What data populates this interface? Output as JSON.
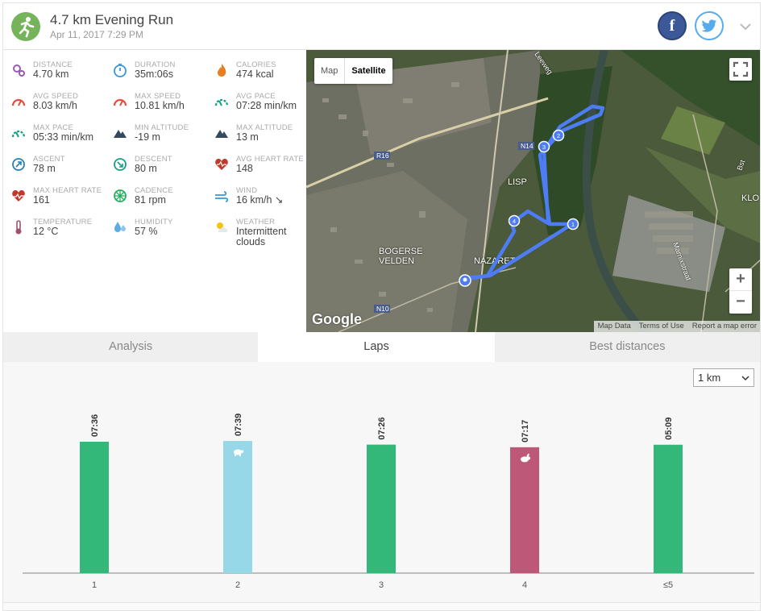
{
  "header": {
    "title": "4.7 km Evening Run",
    "date": "Apr 11, 2017 7:29 PM",
    "facebook_label": "f"
  },
  "stats": [
    {
      "label": "DISTANCE",
      "value": "4.70 km",
      "icon": "route-pin-icon",
      "color": "#9b59b6"
    },
    {
      "label": "DURATION",
      "value": "35m:06s",
      "icon": "stopwatch-icon",
      "color": "#3498db"
    },
    {
      "label": "CALORIES",
      "value": "474 kcal",
      "icon": "flame-icon",
      "color": "#e67e22"
    },
    {
      "label": "AVG SPEED",
      "value": "8.03 km/h",
      "icon": "speedometer-icon",
      "color": "#e74c3c"
    },
    {
      "label": "MAX SPEED",
      "value": "10.81 km/h",
      "icon": "speedometer-icon",
      "color": "#e74c3c"
    },
    {
      "label": "AVG PACE",
      "value": "07:28 min/km",
      "icon": "pace-gauge-icon",
      "color": "#16a085"
    },
    {
      "label": "MAX PACE",
      "value": "05:33 min/km",
      "icon": "pace-gauge-icon",
      "color": "#16a085"
    },
    {
      "label": "MIN ALTITUDE",
      "value": "-19 m",
      "icon": "mountain-icon",
      "color": "#34495e"
    },
    {
      "label": "MAX ALTITUDE",
      "value": "13 m",
      "icon": "mountain-icon",
      "color": "#34495e"
    },
    {
      "label": "ASCENT",
      "value": "78 m",
      "icon": "compass-up-icon",
      "color": "#2980b9"
    },
    {
      "label": "DESCENT",
      "value": "80 m",
      "icon": "compass-down-icon",
      "color": "#16a085"
    },
    {
      "label": "AVG HEART RATE",
      "value": "148",
      "icon": "heart-icon",
      "color": "#c0392b"
    },
    {
      "label": "MAX HEART RATE",
      "value": "161",
      "icon": "heartbeat-icon",
      "color": "#c0392b"
    },
    {
      "label": "CADENCE",
      "value": "81 rpm",
      "icon": "wheel-icon",
      "color": "#27ae60"
    },
    {
      "label": "WIND",
      "value": "16 km/h ↘",
      "icon": "wind-icon",
      "color": "#3498db"
    },
    {
      "label": "TEMPERATURE",
      "value": "12 °C",
      "icon": "thermometer-icon",
      "color": "#a0526b"
    },
    {
      "label": "HUMIDITY",
      "value": "57 %",
      "icon": "droplets-icon",
      "color": "#5dade2"
    },
    {
      "label": "WEATHER",
      "value": "Intermittent\nclouds",
      "icon": "cloud-sun-icon",
      "color": "#f1c40f"
    }
  ],
  "map": {
    "toggle_map": "Map",
    "toggle_satellite": "Satellite",
    "zoom_in": "+",
    "zoom_out": "−",
    "logo": "Google",
    "footer": [
      "Map Data",
      "Terms of Use",
      "Report a map error"
    ],
    "place_labels": [
      "LISP",
      "BOGERSE",
      "VELDEN",
      "NAZARET",
      "KLO",
      "Bst",
      "Marnixstraat",
      "Leeweg"
    ],
    "road_labels": [
      "R16",
      "N14",
      "N10"
    ],
    "lap_markers": [
      "1",
      "2",
      "3",
      "4"
    ],
    "route_color": "#4d7cf5"
  },
  "tabs": [
    {
      "label": "Analysis",
      "active": false
    },
    {
      "label": "Laps",
      "active": true
    },
    {
      "label": "Best distances",
      "active": false
    }
  ],
  "split_select": {
    "value": "1 km"
  },
  "chart_data": {
    "type": "bar",
    "categories": [
      "1",
      "2",
      "3",
      "4",
      "≤5"
    ],
    "values_label": [
      "07:36",
      "07:39",
      "07:26",
      "07:17",
      "05:09"
    ],
    "values_seconds": [
      456,
      459,
      446,
      437,
      309
    ],
    "bar_heights_relative": [
      1.0,
      1.006,
      0.978,
      0.958,
      0.977
    ],
    "colors": [
      "#33b87a",
      "#96d8e8",
      "#33b87a",
      "#be5878",
      "#33b87a"
    ],
    "markers": [
      null,
      "turtle-icon",
      null,
      "rabbit-icon",
      null
    ]
  }
}
